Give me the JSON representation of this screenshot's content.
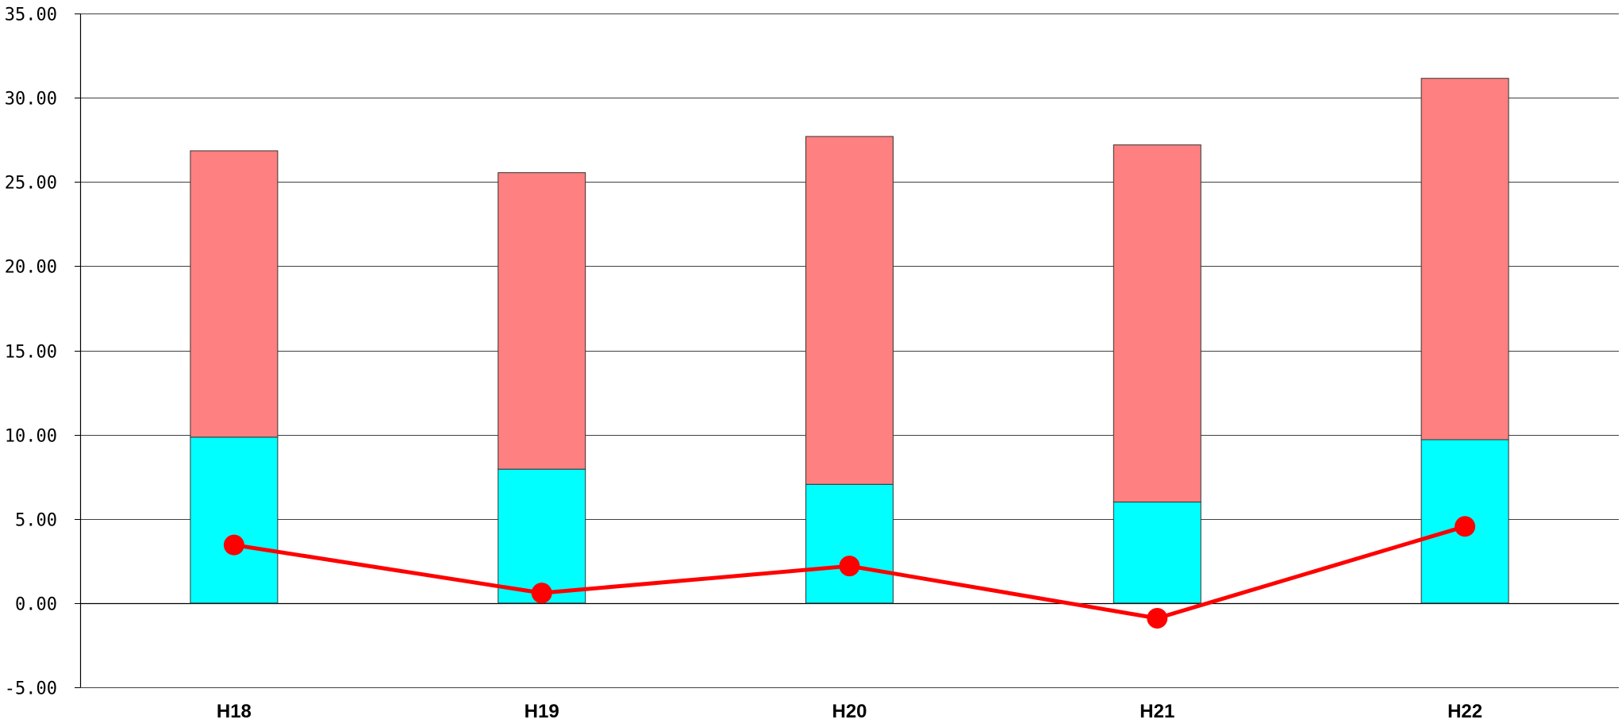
{
  "chart_data": {
    "type": "bar",
    "stacked": true,
    "title": "",
    "xlabel": "",
    "ylabel": "",
    "categories": [
      "H18",
      "H19",
      "H20",
      "H21",
      "H22"
    ],
    "ylim": [
      -5,
      35
    ],
    "y_ticks": [
      "35.00",
      "30.00",
      "25.00",
      "20.00",
      "15.00",
      "10.00",
      "5.00",
      "0.00",
      "-5.00"
    ],
    "y_tick_values": [
      35,
      30,
      25,
      20,
      15,
      10,
      5,
      0,
      -5
    ],
    "grid": true,
    "legend": "none",
    "series": [
      {
        "type": "bar",
        "color": "#00FFFF",
        "values": [
          9.85,
          7.95,
          7.05,
          6.0,
          9.7
        ]
      },
      {
        "type": "bar",
        "color": "#FF8080",
        "values": [
          17.0,
          17.6,
          20.65,
          21.2,
          21.45
        ]
      },
      {
        "type": "line",
        "color": "#FF0000",
        "marker": "circle",
        "values": [
          3.45,
          0.6,
          2.2,
          -0.9,
          4.55
        ]
      }
    ]
  }
}
